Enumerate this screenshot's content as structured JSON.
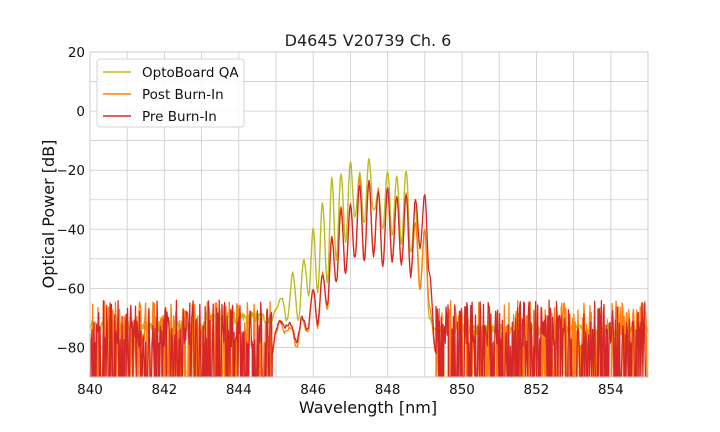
{
  "chart_data": {
    "type": "line",
    "title": "D4645 V20739 Ch. 6",
    "xlabel": "Wavelength [nm]",
    "ylabel": "Optical Power [dB]",
    "xlim": [
      840,
      855
    ],
    "ylim": [
      -90,
      20
    ],
    "xticks": [
      840,
      842,
      844,
      846,
      848,
      850,
      852,
      854
    ],
    "yticks": [
      20,
      0,
      -20,
      -40,
      -60,
      -80
    ],
    "xticklabels": [
      "840",
      "842",
      "844",
      "846",
      "848",
      "850",
      "852",
      "854"
    ],
    "yticklabels": [
      "20",
      "0",
      "−20",
      "−40",
      "−60",
      "−80"
    ],
    "grid": true,
    "legend_position": "top-left",
    "series": [
      {
        "name": "OptoBoard QA",
        "color": "#bcbd22",
        "noise_floor": -73,
        "floor_segments": [
          {
            "x": [
              840,
              843.1
            ],
            "level": -73
          },
          {
            "x": [
              843.1,
              844.9
            ],
            "level": -70
          },
          {
            "x": [
              849.3,
              855
            ],
            "level": -74
          }
        ],
        "x": [
          844.9,
          845.0,
          845.15,
          845.3,
          845.45,
          845.6,
          845.75,
          845.88,
          846.0,
          846.12,
          846.25,
          846.38,
          846.5,
          846.62,
          846.75,
          846.87,
          847.0,
          847.12,
          847.25,
          847.37,
          847.5,
          847.62,
          847.75,
          847.87,
          848.0,
          848.12,
          848.25,
          848.37,
          848.5,
          848.62,
          848.75,
          848.87,
          849.0,
          849.12,
          849.3
        ],
        "y": [
          -70,
          -67,
          -63,
          -71,
          -55,
          -71,
          -50,
          -62,
          -40,
          -61,
          -31,
          -58,
          -23,
          -50,
          -21,
          -44,
          -17,
          -36,
          -21,
          -38,
          -16,
          -34,
          -28,
          -40,
          -20,
          -42,
          -22,
          -45,
          -20,
          -48,
          -32,
          -60,
          -40,
          -70,
          -74
        ]
      },
      {
        "name": "Post Burn-In",
        "color": "#ff7f0e",
        "noise_floor": -82,
        "floor_segments": [
          {
            "x": [
              840,
              844.9
            ],
            "level": -82
          },
          {
            "x": [
              849.3,
              855
            ],
            "level": -82
          }
        ],
        "x": [
          844.9,
          845.0,
          845.1,
          845.25,
          845.4,
          845.55,
          845.7,
          845.85,
          846.0,
          846.12,
          846.25,
          846.38,
          846.5,
          846.62,
          846.75,
          846.87,
          847.0,
          847.12,
          847.25,
          847.37,
          847.5,
          847.62,
          847.75,
          847.87,
          848.0,
          848.12,
          848.25,
          848.37,
          848.5,
          848.62,
          848.75,
          848.87,
          849.0,
          849.12,
          849.3
        ],
        "y": [
          -82,
          -75,
          -71,
          -75,
          -73,
          -80,
          -70,
          -75,
          -60,
          -73,
          -55,
          -67,
          -42,
          -58,
          -32,
          -55,
          -31,
          -50,
          -23,
          -50,
          -24,
          -48,
          -26,
          -52,
          -26,
          -50,
          -29,
          -52,
          -28,
          -55,
          -38,
          -60,
          -40,
          -66,
          -82
        ]
      },
      {
        "name": "Pre Burn-In",
        "color": "#d62728",
        "noise_floor": -82,
        "floor_segments": [
          {
            "x": [
              840,
              844.9
            ],
            "level": -82
          },
          {
            "x": [
              849.3,
              855
            ],
            "level": -82
          }
        ],
        "x": [
          844.9,
          845.0,
          845.1,
          845.25,
          845.4,
          845.55,
          845.7,
          845.85,
          846.0,
          846.12,
          846.25,
          846.38,
          846.5,
          846.62,
          846.75,
          846.87,
          847.0,
          847.12,
          847.25,
          847.37,
          847.5,
          847.62,
          847.75,
          847.87,
          848.0,
          848.12,
          848.25,
          848.37,
          848.5,
          848.62,
          848.75,
          848.87,
          849.0,
          849.12,
          849.3
        ],
        "y": [
          -82,
          -74,
          -71,
          -73,
          -72,
          -78,
          -70,
          -74,
          -60,
          -72,
          -55,
          -66,
          -43,
          -58,
          -33,
          -55,
          -32,
          -50,
          -25,
          -51,
          -24,
          -49,
          -27,
          -53,
          -26,
          -51,
          -29,
          -52,
          -28,
          -56,
          -30,
          -46,
          -28,
          -55,
          -82
        ]
      }
    ]
  }
}
